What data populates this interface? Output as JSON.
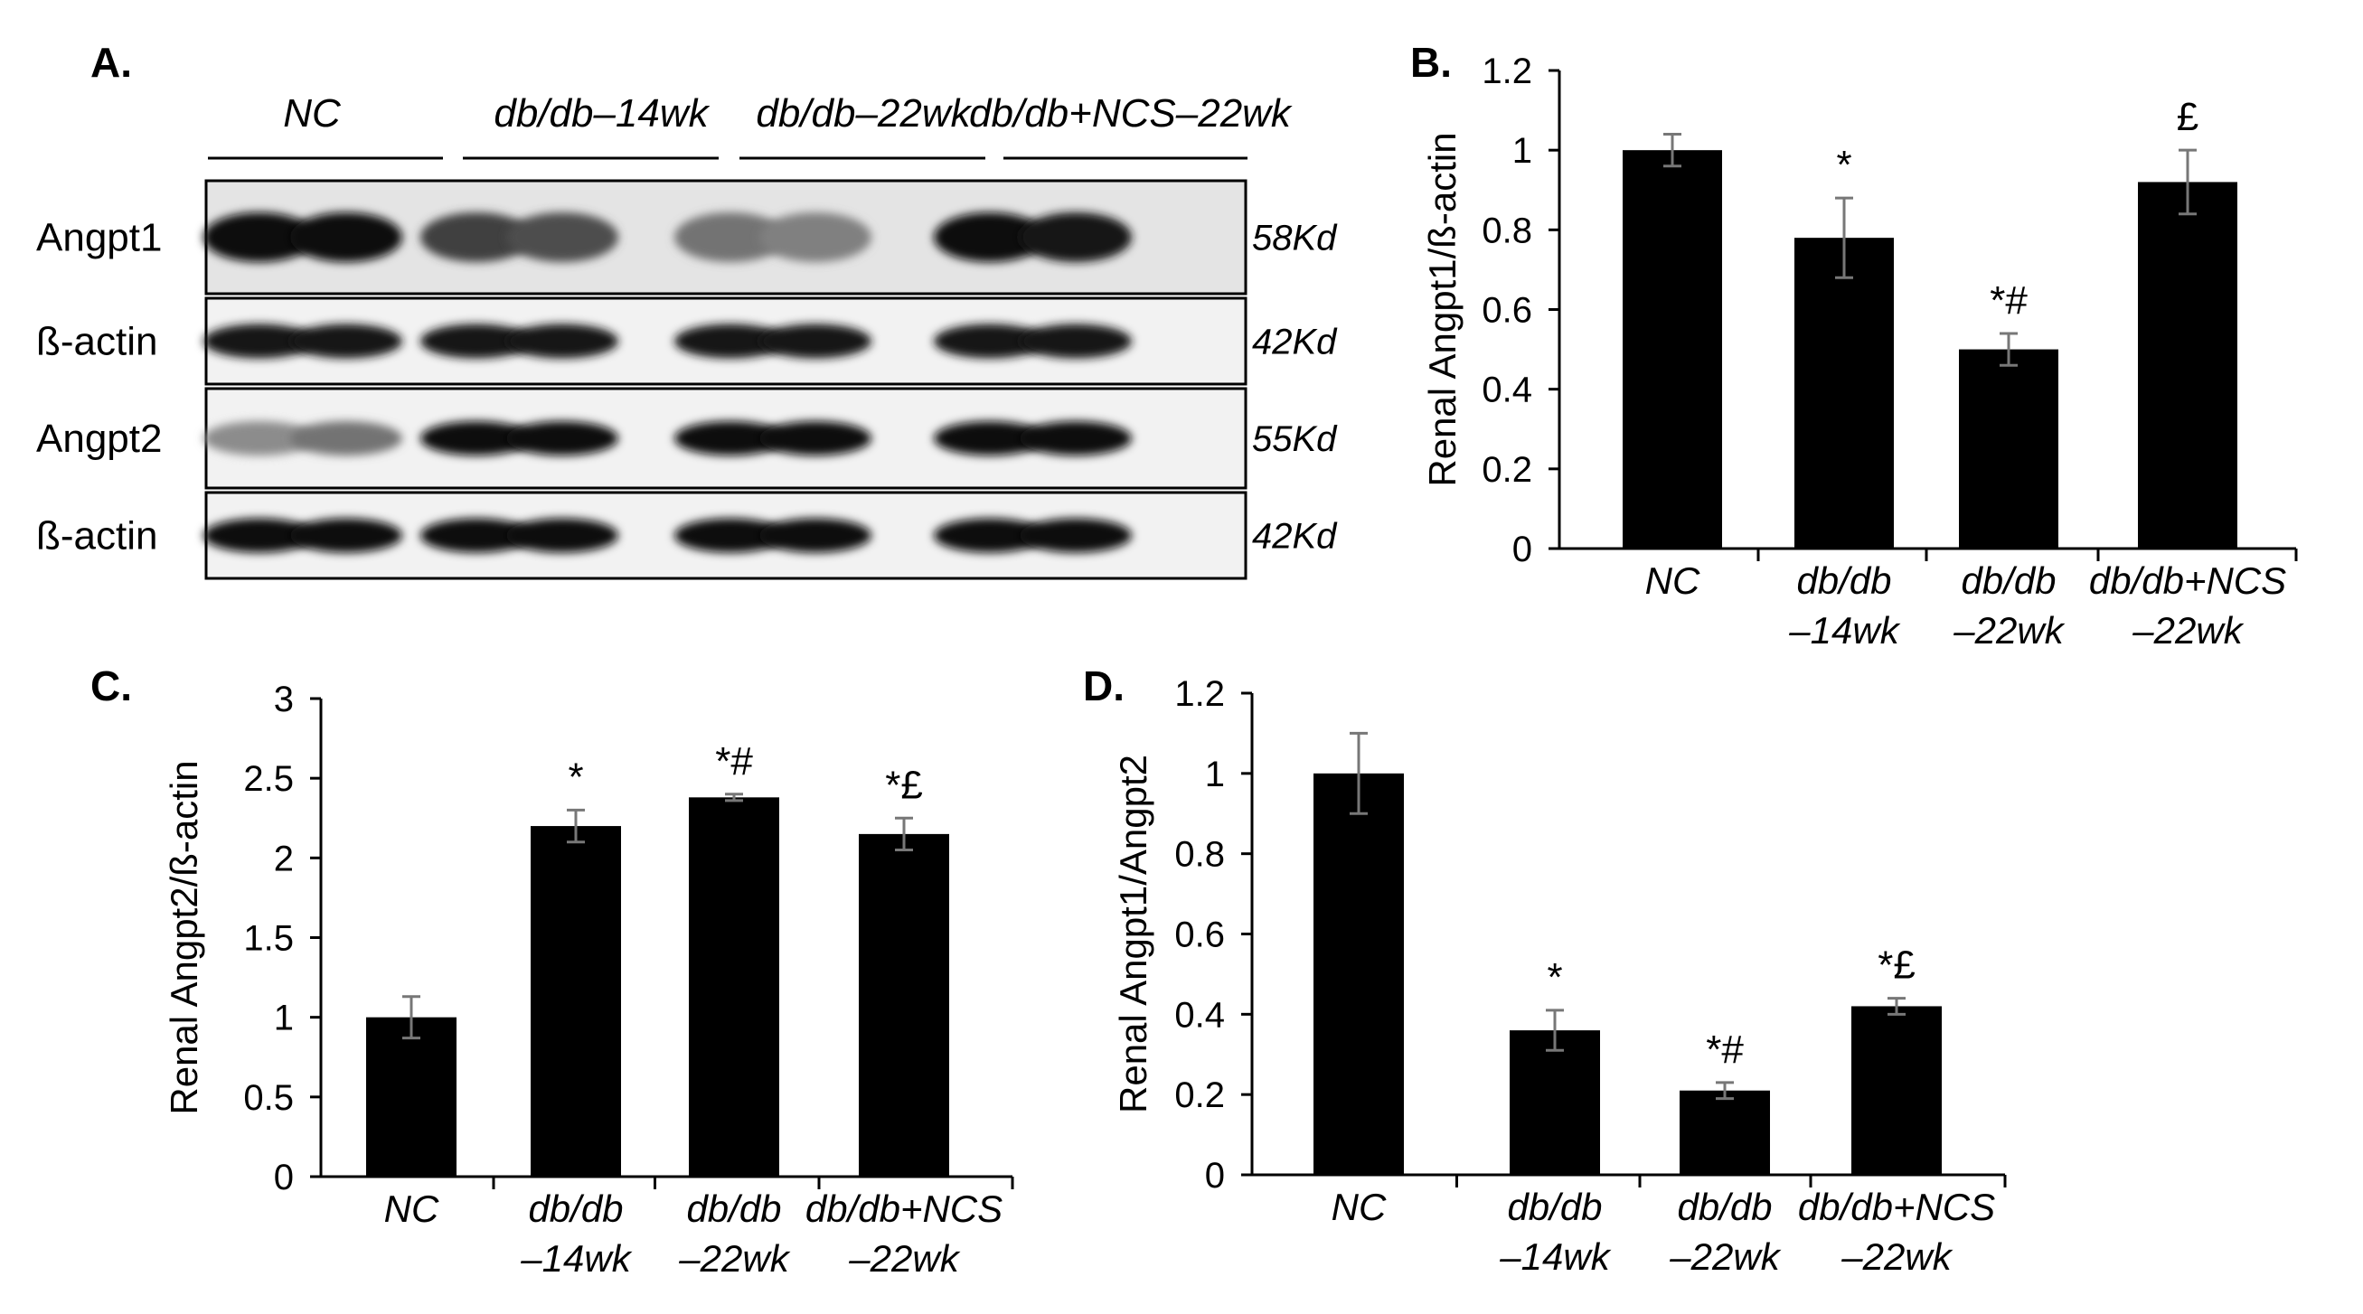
{
  "figure": {
    "blot": {
      "panel": "A.",
      "groups": [
        "NC",
        "db/db–14wk",
        "db/db–22wk",
        "db/db+NCS–22wk"
      ],
      "rows": [
        {
          "label": "Angpt1",
          "kd": "58Kd",
          "intensity": [
            0.95,
            0.95,
            0.75,
            0.7,
            0.55,
            0.5,
            0.95,
            0.92
          ]
        },
        {
          "label": "ß-actin",
          "kd": "42Kd",
          "intensity": [
            0.9,
            0.9,
            0.9,
            0.9,
            0.9,
            0.9,
            0.9,
            0.9
          ]
        },
        {
          "label": "Angpt2",
          "kd": "55Kd",
          "intensity": [
            0.45,
            0.55,
            0.95,
            0.95,
            0.95,
            0.95,
            0.95,
            0.95
          ]
        },
        {
          "label": "ß-actin",
          "kd": "42Kd",
          "intensity": [
            0.95,
            0.95,
            0.95,
            0.95,
            0.95,
            0.95,
            0.95,
            0.95
          ]
        }
      ]
    }
  },
  "chart_data": [
    {
      "panel": "B.",
      "type": "bar",
      "ylabel": "Renal Angpt1/ß-actin",
      "ylim": [
        0,
        1.2
      ],
      "yticks": [
        "0",
        "0.2",
        "0.4",
        "0.6",
        "0.8",
        "1",
        "1.2"
      ],
      "categories": [
        [
          "NC"
        ],
        [
          "db/db",
          "–14wk"
        ],
        [
          "db/db",
          "–22wk"
        ],
        [
          "db/db+NCS",
          "–22wk"
        ]
      ],
      "values": [
        1.0,
        0.78,
        0.5,
        0.92
      ],
      "errors": [
        0.04,
        0.1,
        0.04,
        0.08
      ],
      "annotations": [
        "",
        "*",
        "*#",
        "£"
      ],
      "color": "#000000"
    },
    {
      "panel": "C.",
      "type": "bar",
      "ylabel": "Renal Angpt2/ß-actin",
      "ylim": [
        0,
        3
      ],
      "yticks": [
        "0",
        "0.5",
        "1",
        "1.5",
        "2",
        "2.5",
        "3"
      ],
      "categories": [
        [
          "NC"
        ],
        [
          "db/db",
          "–14wk"
        ],
        [
          "db/db",
          "–22wk"
        ],
        [
          "db/db+NCS",
          "–22wk"
        ]
      ],
      "values": [
        1.0,
        2.2,
        2.38,
        2.15
      ],
      "errors": [
        0.13,
        0.1,
        0.02,
        0.1
      ],
      "annotations": [
        "",
        "*",
        "*#",
        "*£"
      ],
      "color": "#000000"
    },
    {
      "panel": "D.",
      "type": "bar",
      "ylabel": "Renal Angpt1/Angpt2",
      "ylim": [
        0,
        1.2
      ],
      "yticks": [
        "0",
        "0.2",
        "0.4",
        "0.6",
        "0.8",
        "1",
        "1.2"
      ],
      "categories": [
        [
          "NC"
        ],
        [
          "db/db",
          "–14wk"
        ],
        [
          "db/db",
          "–22wk"
        ],
        [
          "db/db+NCS",
          "–22wk"
        ]
      ],
      "values": [
        1.0,
        0.36,
        0.21,
        0.42
      ],
      "errors": [
        0.1,
        0.05,
        0.02,
        0.02
      ],
      "annotations": [
        "",
        "*",
        "*#",
        "*£"
      ],
      "color": "#000000"
    }
  ]
}
